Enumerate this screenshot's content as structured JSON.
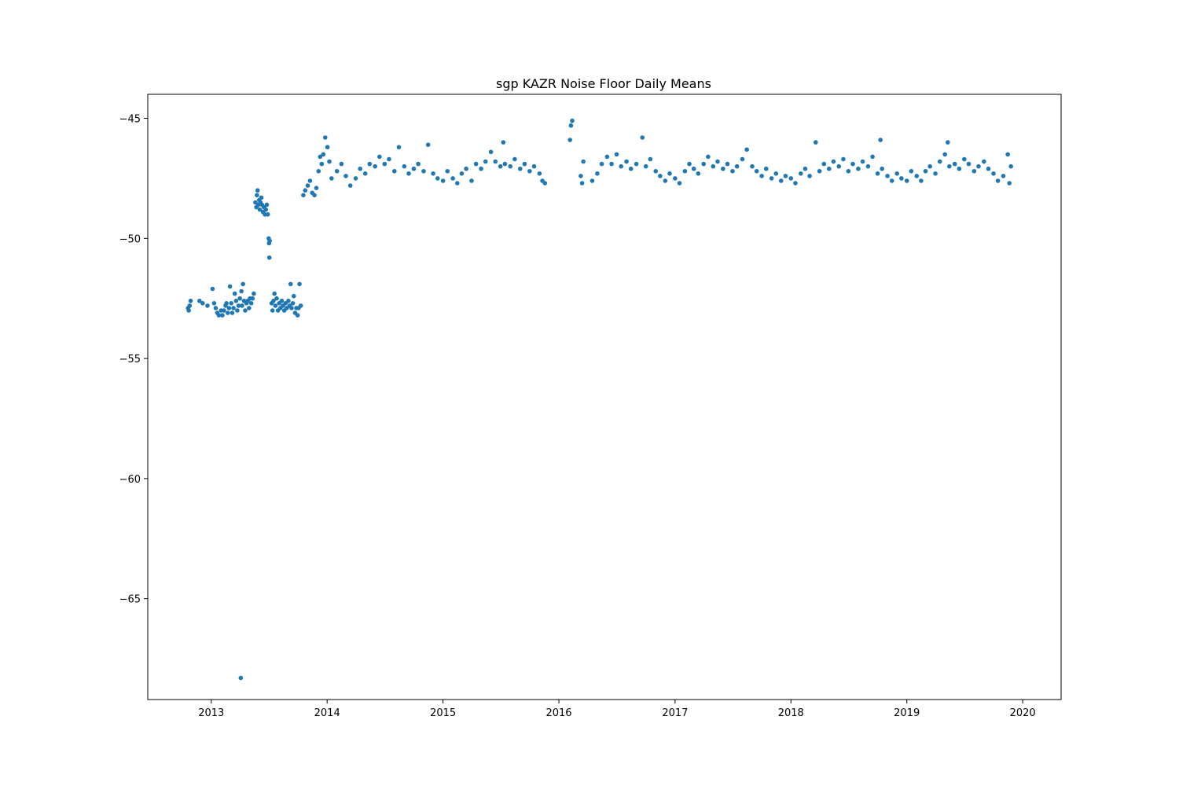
{
  "chart_data": {
    "type": "scatter",
    "title": "sgp KAZR Noise Floor Daily Means",
    "xlabel": "",
    "ylabel": "",
    "x_is_date": true,
    "xlim": [
      "2012-06-15",
      "2020-05-01"
    ],
    "ylim": [
      -69.2,
      -44.0
    ],
    "x_ticks": [
      {
        "value": "2013-01-01",
        "label": "2013"
      },
      {
        "value": "2014-01-01",
        "label": "2014"
      },
      {
        "value": "2015-01-01",
        "label": "2015"
      },
      {
        "value": "2016-01-01",
        "label": "2016"
      },
      {
        "value": "2017-01-01",
        "label": "2017"
      },
      {
        "value": "2018-01-01",
        "label": "2018"
      },
      {
        "value": "2019-01-01",
        "label": "2019"
      },
      {
        "value": "2020-01-01",
        "label": "2020"
      }
    ],
    "y_ticks": [
      {
        "value": -45,
        "label": "−45"
      },
      {
        "value": -50,
        "label": "−50"
      },
      {
        "value": -55,
        "label": "−55"
      },
      {
        "value": -60,
        "label": "−60"
      },
      {
        "value": -65,
        "label": "−65"
      }
    ],
    "grid": false,
    "marker_color": "#1f77b4",
    "series": [
      {
        "points": [
          [
            "2012-10-20",
            -52.9
          ],
          [
            "2012-10-22",
            -53.0
          ],
          [
            "2012-10-25",
            -52.8
          ],
          [
            "2012-10-28",
            -52.6
          ],
          [
            "2012-11-25",
            -52.6
          ],
          [
            "2012-12-05",
            -52.7
          ],
          [
            "2012-12-20",
            -52.8
          ],
          [
            "2013-01-05",
            -52.1
          ],
          [
            "2013-01-10",
            -52.7
          ],
          [
            "2013-01-15",
            -52.9
          ],
          [
            "2013-01-20",
            -53.1
          ],
          [
            "2013-01-25",
            -53.2
          ],
          [
            "2013-02-01",
            -53.0
          ],
          [
            "2013-02-05",
            -53.2
          ],
          [
            "2013-02-10",
            -53.0
          ],
          [
            "2013-02-15",
            -52.8
          ],
          [
            "2013-02-18",
            -52.7
          ],
          [
            "2013-02-22",
            -53.1
          ],
          [
            "2013-02-26",
            -52.9
          ],
          [
            "2013-03-01",
            -52.0
          ],
          [
            "2013-03-05",
            -52.7
          ],
          [
            "2013-03-08",
            -53.1
          ],
          [
            "2013-03-12",
            -52.9
          ],
          [
            "2013-03-16",
            -52.3
          ],
          [
            "2013-03-20",
            -52.6
          ],
          [
            "2013-03-24",
            -53.0
          ],
          [
            "2013-03-28",
            -52.8
          ],
          [
            "2013-04-01",
            -52.5
          ],
          [
            "2013-04-04",
            -68.3
          ],
          [
            "2013-04-06",
            -52.2
          ],
          [
            "2013-04-08",
            -52.8
          ],
          [
            "2013-04-11",
            -51.9
          ],
          [
            "2013-04-14",
            -52.6
          ],
          [
            "2013-04-18",
            -53.0
          ],
          [
            "2013-04-22",
            -52.7
          ],
          [
            "2013-04-26",
            -52.6
          ],
          [
            "2013-04-30",
            -52.9
          ],
          [
            "2013-05-03",
            -52.5
          ],
          [
            "2013-05-07",
            -52.7
          ],
          [
            "2013-05-11",
            -52.5
          ],
          [
            "2013-05-15",
            -52.3
          ],
          [
            "2013-05-20",
            -48.5
          ],
          [
            "2013-05-23",
            -48.7
          ],
          [
            "2013-05-25",
            -48.2
          ],
          [
            "2013-05-27",
            -48.0
          ],
          [
            "2013-05-29",
            -48.6
          ],
          [
            "2013-06-01",
            -48.4
          ],
          [
            "2013-06-03",
            -48.8
          ],
          [
            "2013-06-05",
            -48.5
          ],
          [
            "2013-06-08",
            -48.3
          ],
          [
            "2013-06-10",
            -48.6
          ],
          [
            "2013-06-13",
            -48.9
          ],
          [
            "2013-06-16",
            -48.7
          ],
          [
            "2013-06-19",
            -49.0
          ],
          [
            "2013-06-22",
            -48.8
          ],
          [
            "2013-06-25",
            -48.6
          ],
          [
            "2013-06-28",
            -49.0
          ],
          [
            "2013-07-01",
            -50.0
          ],
          [
            "2013-07-02",
            -50.2
          ],
          [
            "2013-07-03",
            -50.8
          ],
          [
            "2013-07-04",
            -50.1
          ],
          [
            "2013-07-10",
            -52.7
          ],
          [
            "2013-07-13",
            -53.0
          ],
          [
            "2013-07-16",
            -52.6
          ],
          [
            "2013-07-19",
            -52.3
          ],
          [
            "2013-07-22",
            -52.8
          ],
          [
            "2013-07-26",
            -52.5
          ],
          [
            "2013-07-30",
            -53.0
          ],
          [
            "2013-08-03",
            -52.7
          ],
          [
            "2013-08-07",
            -52.9
          ],
          [
            "2013-08-11",
            -52.6
          ],
          [
            "2013-08-15",
            -52.8
          ],
          [
            "2013-08-19",
            -53.0
          ],
          [
            "2013-08-23",
            -52.7
          ],
          [
            "2013-08-27",
            -52.9
          ],
          [
            "2013-09-01",
            -52.6
          ],
          [
            "2013-09-05",
            -52.8
          ],
          [
            "2013-09-08",
            -51.9
          ],
          [
            "2013-09-11",
            -52.9
          ],
          [
            "2013-09-15",
            -52.7
          ],
          [
            "2013-09-18",
            -52.4
          ],
          [
            "2013-09-22",
            -53.1
          ],
          [
            "2013-09-26",
            -52.9
          ],
          [
            "2013-09-30",
            -53.2
          ],
          [
            "2013-10-03",
            -52.9
          ],
          [
            "2013-10-06",
            -51.9
          ],
          [
            "2013-10-10",
            -52.8
          ],
          [
            "2013-10-18",
            -48.2
          ],
          [
            "2013-10-24",
            -48.0
          ],
          [
            "2013-11-01",
            -47.8
          ],
          [
            "2013-11-08",
            -47.6
          ],
          [
            "2013-11-15",
            -48.1
          ],
          [
            "2013-11-22",
            -48.2
          ],
          [
            "2013-11-28",
            -47.9
          ],
          [
            "2013-12-05",
            -47.2
          ],
          [
            "2013-12-10",
            -46.6
          ],
          [
            "2013-12-15",
            -46.9
          ],
          [
            "2013-12-20",
            -46.5
          ],
          [
            "2013-12-26",
            -45.8
          ],
          [
            "2014-01-02",
            -46.2
          ],
          [
            "2014-01-08",
            -46.8
          ],
          [
            "2014-01-15",
            -47.5
          ],
          [
            "2014-02-01",
            -47.2
          ],
          [
            "2014-02-15",
            -46.9
          ],
          [
            "2014-03-01",
            -47.4
          ],
          [
            "2014-03-15",
            -47.8
          ],
          [
            "2014-04-01",
            -47.5
          ],
          [
            "2014-04-15",
            -47.1
          ],
          [
            "2014-05-01",
            -47.3
          ],
          [
            "2014-05-15",
            -46.9
          ],
          [
            "2014-06-01",
            -47.0
          ],
          [
            "2014-06-15",
            -46.6
          ],
          [
            "2014-07-01",
            -46.9
          ],
          [
            "2014-07-15",
            -46.7
          ],
          [
            "2014-08-01",
            -47.2
          ],
          [
            "2014-08-15",
            -46.2
          ],
          [
            "2014-09-01",
            -47.0
          ],
          [
            "2014-09-15",
            -47.3
          ],
          [
            "2014-10-01",
            -47.1
          ],
          [
            "2014-10-15",
            -46.9
          ],
          [
            "2014-11-01",
            -47.2
          ],
          [
            "2014-11-15",
            -46.1
          ],
          [
            "2014-12-01",
            -47.3
          ],
          [
            "2014-12-15",
            -47.5
          ],
          [
            "2015-01-01",
            -47.6
          ],
          [
            "2015-01-15",
            -47.2
          ],
          [
            "2015-02-01",
            -47.5
          ],
          [
            "2015-02-15",
            -47.7
          ],
          [
            "2015-03-01",
            -47.3
          ],
          [
            "2015-03-15",
            -47.1
          ],
          [
            "2015-04-01",
            -47.6
          ],
          [
            "2015-04-15",
            -46.9
          ],
          [
            "2015-05-01",
            -47.1
          ],
          [
            "2015-05-15",
            -46.8
          ],
          [
            "2015-06-01",
            -46.4
          ],
          [
            "2015-06-15",
            -46.8
          ],
          [
            "2015-07-01",
            -47.0
          ],
          [
            "2015-07-10",
            -46.0
          ],
          [
            "2015-07-15",
            -46.9
          ],
          [
            "2015-08-01",
            -47.0
          ],
          [
            "2015-08-15",
            -46.7
          ],
          [
            "2015-09-01",
            -47.1
          ],
          [
            "2015-09-15",
            -46.9
          ],
          [
            "2015-10-01",
            -47.2
          ],
          [
            "2015-10-15",
            -47.0
          ],
          [
            "2015-11-01",
            -47.3
          ],
          [
            "2015-11-10",
            -47.6
          ],
          [
            "2015-11-18",
            -47.7
          ],
          [
            "2016-02-05",
            -45.9
          ],
          [
            "2016-02-08",
            -45.3
          ],
          [
            "2016-02-12",
            -45.1
          ],
          [
            "2016-03-10",
            -47.4
          ],
          [
            "2016-03-14",
            -47.7
          ],
          [
            "2016-03-18",
            -46.8
          ],
          [
            "2016-04-15",
            -47.6
          ],
          [
            "2016-05-01",
            -47.3
          ],
          [
            "2016-05-15",
            -46.9
          ],
          [
            "2016-06-01",
            -46.6
          ],
          [
            "2016-06-15",
            -46.9
          ],
          [
            "2016-07-01",
            -46.5
          ],
          [
            "2016-07-15",
            -47.0
          ],
          [
            "2016-08-01",
            -46.8
          ],
          [
            "2016-08-15",
            -47.1
          ],
          [
            "2016-09-01",
            -46.9
          ],
          [
            "2016-09-20",
            -45.8
          ],
          [
            "2016-10-01",
            -47.0
          ],
          [
            "2016-10-15",
            -46.7
          ],
          [
            "2016-11-01",
            -47.2
          ],
          [
            "2016-11-15",
            -47.4
          ],
          [
            "2016-12-01",
            -47.6
          ],
          [
            "2016-12-15",
            -47.3
          ],
          [
            "2017-01-01",
            -47.5
          ],
          [
            "2017-01-15",
            -47.7
          ],
          [
            "2017-02-01",
            -47.2
          ],
          [
            "2017-02-15",
            -46.9
          ],
          [
            "2017-03-01",
            -47.1
          ],
          [
            "2017-03-15",
            -47.3
          ],
          [
            "2017-04-01",
            -46.9
          ],
          [
            "2017-04-15",
            -46.6
          ],
          [
            "2017-05-01",
            -47.0
          ],
          [
            "2017-05-15",
            -46.8
          ],
          [
            "2017-06-01",
            -47.1
          ],
          [
            "2017-06-15",
            -46.9
          ],
          [
            "2017-07-01",
            -47.2
          ],
          [
            "2017-07-15",
            -47.0
          ],
          [
            "2017-08-01",
            -46.7
          ],
          [
            "2017-08-15",
            -46.3
          ],
          [
            "2017-09-01",
            -47.0
          ],
          [
            "2017-09-15",
            -47.2
          ],
          [
            "2017-10-01",
            -47.4
          ],
          [
            "2017-10-15",
            -47.1
          ],
          [
            "2017-11-01",
            -47.5
          ],
          [
            "2017-11-15",
            -47.3
          ],
          [
            "2017-12-01",
            -47.6
          ],
          [
            "2017-12-15",
            -47.4
          ],
          [
            "2018-01-01",
            -47.5
          ],
          [
            "2018-01-15",
            -47.7
          ],
          [
            "2018-02-01",
            -47.3
          ],
          [
            "2018-02-15",
            -47.1
          ],
          [
            "2018-03-01",
            -47.4
          ],
          [
            "2018-03-20",
            -46.0
          ],
          [
            "2018-04-01",
            -47.2
          ],
          [
            "2018-04-15",
            -46.9
          ],
          [
            "2018-05-01",
            -47.1
          ],
          [
            "2018-05-15",
            -46.8
          ],
          [
            "2018-06-01",
            -47.0
          ],
          [
            "2018-06-15",
            -46.7
          ],
          [
            "2018-07-01",
            -47.2
          ],
          [
            "2018-07-15",
            -46.9
          ],
          [
            "2018-08-01",
            -47.1
          ],
          [
            "2018-08-15",
            -46.8
          ],
          [
            "2018-09-01",
            -47.0
          ],
          [
            "2018-09-15",
            -46.6
          ],
          [
            "2018-10-01",
            -47.3
          ],
          [
            "2018-10-10",
            -45.9
          ],
          [
            "2018-10-15",
            -47.1
          ],
          [
            "2018-11-01",
            -47.4
          ],
          [
            "2018-11-15",
            -47.6
          ],
          [
            "2018-12-01",
            -47.3
          ],
          [
            "2018-12-15",
            -47.5
          ],
          [
            "2019-01-01",
            -47.6
          ],
          [
            "2019-01-15",
            -47.2
          ],
          [
            "2019-02-01",
            -47.4
          ],
          [
            "2019-02-15",
            -47.6
          ],
          [
            "2019-03-01",
            -47.2
          ],
          [
            "2019-03-15",
            -47.0
          ],
          [
            "2019-04-01",
            -47.3
          ],
          [
            "2019-04-15",
            -46.8
          ],
          [
            "2019-05-01",
            -46.5
          ],
          [
            "2019-05-10",
            -46.0
          ],
          [
            "2019-05-15",
            -47.0
          ],
          [
            "2019-06-01",
            -46.9
          ],
          [
            "2019-06-15",
            -47.1
          ],
          [
            "2019-07-01",
            -46.7
          ],
          [
            "2019-07-15",
            -46.9
          ],
          [
            "2019-08-01",
            -47.2
          ],
          [
            "2019-08-15",
            -47.0
          ],
          [
            "2019-09-01",
            -46.8
          ],
          [
            "2019-09-15",
            -47.1
          ],
          [
            "2019-10-01",
            -47.3
          ],
          [
            "2019-10-15",
            -47.6
          ],
          [
            "2019-11-01",
            -47.4
          ],
          [
            "2019-11-15",
            -46.5
          ],
          [
            "2019-11-20",
            -47.7
          ],
          [
            "2019-11-25",
            -47.0
          ]
        ]
      }
    ]
  }
}
